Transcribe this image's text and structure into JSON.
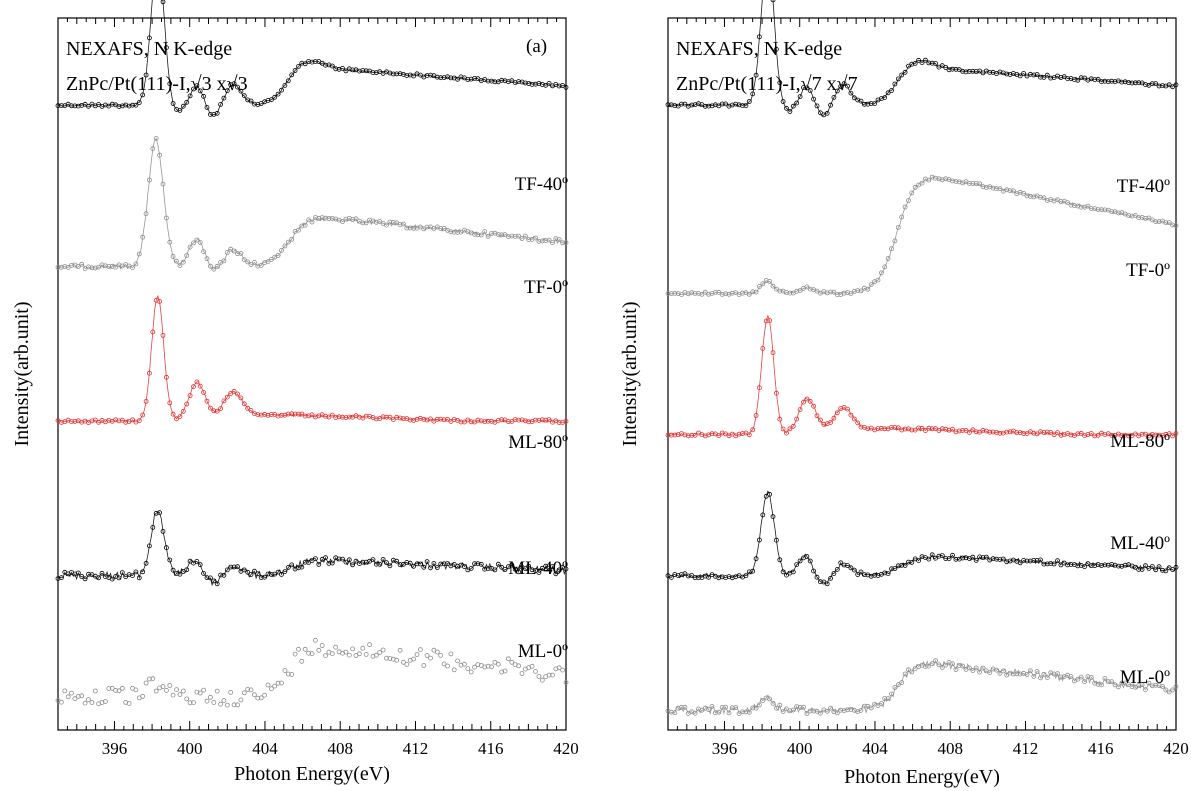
{
  "chart_data": [
    {
      "type": "scatter",
      "panel_tag": "(a)",
      "annotation_lines": [
        "NEXAFS, N K-edge",
        "ZnPc/Pt(111)-I,√3 x√3"
      ],
      "xlabel": "Photon Energy(eV)",
      "ylabel": "Intensity(arb.unit)",
      "xlim": [
        393,
        420
      ],
      "xticks": [
        396,
        400,
        404,
        408,
        412,
        416,
        420
      ],
      "grid": false,
      "series": [
        {
          "name": "TF-40º",
          "color": "#000000",
          "baseline": 0.9,
          "scale": 1.0,
          "noise": 0.02,
          "shape": "A"
        },
        {
          "name": "TF-0º",
          "color": "#8c8c8c",
          "baseline": 0.66,
          "scale": 0.95,
          "noise": 0.03,
          "shape": "B"
        },
        {
          "name": "ML-80º",
          "color": "#e03030",
          "baseline": 0.43,
          "scale": 0.85,
          "noise": 0.02,
          "shape": "C"
        },
        {
          "name": "ML-40º",
          "color": "#000000",
          "baseline": 0.2,
          "scale": 0.55,
          "noise": 0.05,
          "shape": "D"
        },
        {
          "name": "ML-0º",
          "color": "#8c8c8c",
          "baseline": 0.02,
          "scale": 0.6,
          "noise": 0.12,
          "shape": "E"
        }
      ]
    },
    {
      "type": "scatter",
      "panel_tag": "",
      "annotation_lines": [
        "NEXAFS, N K-edge",
        "ZnPc/Pt(111)-I,√7 x√7"
      ],
      "xlabel": "Photon Energy(eV)",
      "ylabel": "Intensity(arb.unit)",
      "xlim": [
        393,
        420
      ],
      "xticks": [
        396,
        400,
        404,
        408,
        412,
        416,
        420
      ],
      "grid": false,
      "series": [
        {
          "name": "TF-40º",
          "color": "#000000",
          "baseline": 0.9,
          "scale": 1.0,
          "noise": 0.02,
          "shape": "A"
        },
        {
          "name": "TF-0º",
          "color": "#8c8c8c",
          "baseline": 0.62,
          "scale": 0.9,
          "noise": 0.02,
          "shape": "F"
        },
        {
          "name": "ML-80º",
          "color": "#e03030",
          "baseline": 0.41,
          "scale": 0.8,
          "noise": 0.02,
          "shape": "C"
        },
        {
          "name": "ML-40º",
          "color": "#000000",
          "baseline": 0.2,
          "scale": 0.7,
          "noise": 0.03,
          "shape": "D"
        },
        {
          "name": "ML-0º",
          "color": "#8c8c8c",
          "baseline": 0.0,
          "scale": 0.55,
          "noise": 0.05,
          "shape": "E"
        }
      ]
    }
  ]
}
